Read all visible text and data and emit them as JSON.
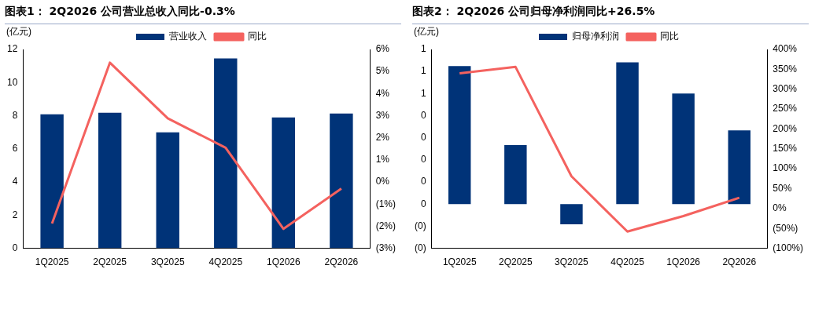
{
  "chart_data": [
    {
      "type": "bar",
      "title": "图表1：  2Q2026 公司营业总收入同比-0.3%",
      "ylabel": "(亿元)",
      "legend": "top",
      "categories": [
        "1Q2025",
        "2Q2025",
        "3Q2025",
        "4Q2025",
        "1Q2026",
        "2Q2026"
      ],
      "series": [
        {
          "name": "营业收入",
          "color": "#003378",
          "values": [
            8.08,
            8.18,
            7.0,
            11.45,
            7.9,
            8.13
          ]
        },
        {
          "name": "同比",
          "type": "line",
          "axis": "y2",
          "color": "#f4625f",
          "values": [
            -1.88,
            5.4,
            2.88,
            1.55,
            -2.12,
            -0.3
          ]
        }
      ],
      "ylim": [
        0,
        12
      ],
      "yticks": [
        0,
        2,
        4,
        6,
        8,
        10,
        12
      ],
      "y2lim": [
        -3,
        6
      ],
      "y2ticks": [
        {
          "value": -3,
          "label": "(3%)"
        },
        {
          "value": -2,
          "label": "(2%)"
        },
        {
          "value": -1,
          "label": "(1%)"
        },
        {
          "value": 0,
          "label": "0%"
        },
        {
          "value": 1,
          "label": "1%"
        },
        {
          "value": 2,
          "label": "2%"
        },
        {
          "value": 3,
          "label": "3%"
        },
        {
          "value": 4,
          "label": "4%"
        },
        {
          "value": 5,
          "label": "5%"
        },
        {
          "value": 6,
          "label": "6%"
        }
      ]
    },
    {
      "type": "bar",
      "title": "图表2：  2Q2026 公司归母净利润同比+26.5%",
      "ylabel": "(亿元)",
      "legend": "top",
      "categories": [
        "1Q2025",
        "2Q2025",
        "3Q2025",
        "4Q2025",
        "1Q2026",
        "2Q2026"
      ],
      "series": [
        {
          "name": "归母净利润",
          "color": "#003378",
          "values": [
            0.75,
            0.32,
            -0.11,
            0.77,
            0.6,
            0.4
          ]
        },
        {
          "name": "同比",
          "type": "line",
          "axis": "y2",
          "color": "#f4625f",
          "values": [
            340,
            356,
            81,
            -58,
            -19,
            27
          ]
        }
      ],
      "ylim": [
        -0.24,
        0.84
      ],
      "yticks": [
        {
          "value": -0.24,
          "label": "(0)"
        },
        {
          "value": -0.12,
          "label": "(0)"
        },
        {
          "value": 0,
          "label": "0"
        },
        {
          "value": 0.12,
          "label": "0"
        },
        {
          "value": 0.24,
          "label": "0"
        },
        {
          "value": 0.36,
          "label": "0"
        },
        {
          "value": 0.48,
          "label": "0"
        },
        {
          "value": 0.6,
          "label": "1"
        },
        {
          "value": 0.72,
          "label": "1"
        },
        {
          "value": 0.84,
          "label": "1"
        }
      ],
      "y2lim": [
        -100,
        400
      ],
      "y2ticks": [
        {
          "value": -100,
          "label": "(100%)"
        },
        {
          "value": -50,
          "label": "(50%)"
        },
        {
          "value": 0,
          "label": "0%"
        },
        {
          "value": 50,
          "label": "50%"
        },
        {
          "value": 100,
          "label": "100%"
        },
        {
          "value": 150,
          "label": "150%"
        },
        {
          "value": 200,
          "label": "200%"
        },
        {
          "value": 250,
          "label": "250%"
        },
        {
          "value": 300,
          "label": "300%"
        },
        {
          "value": 350,
          "label": "350%"
        },
        {
          "value": 400,
          "label": "400%"
        }
      ]
    }
  ]
}
